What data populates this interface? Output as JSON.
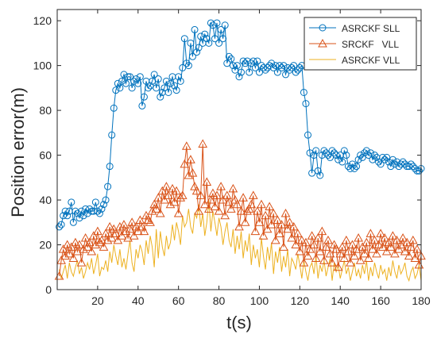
{
  "chart_data": {
    "type": "line",
    "title": "",
    "xlabel": "t(s)",
    "ylabel": "Position error(m)",
    "xlim": [
      0,
      180
    ],
    "ylim": [
      0,
      125
    ],
    "xticks": [
      20,
      40,
      60,
      80,
      100,
      120,
      140,
      160,
      180
    ],
    "yticks": [
      0,
      20,
      40,
      60,
      80,
      100,
      120
    ],
    "grid": false,
    "legend_position": "top-right",
    "series": [
      {
        "name": "ASRCKF SLL",
        "color": "#0072BD",
        "marker": "circle",
        "x": [
          1,
          2,
          3,
          4,
          5,
          6,
          7,
          8,
          9,
          10,
          11,
          12,
          13,
          14,
          15,
          16,
          17,
          18,
          19,
          20,
          21,
          22,
          23,
          24,
          25,
          26,
          27,
          28,
          29,
          30,
          31,
          32,
          33,
          34,
          35,
          36,
          37,
          38,
          39,
          40,
          41,
          42,
          43,
          44,
          45,
          46,
          47,
          48,
          49,
          50,
          51,
          52,
          53,
          54,
          55,
          56,
          57,
          58,
          59,
          60,
          61,
          62,
          63,
          64,
          65,
          66,
          67,
          68,
          69,
          70,
          71,
          72,
          73,
          74,
          75,
          76,
          77,
          78,
          79,
          80,
          81,
          82,
          83,
          84,
          85,
          86,
          87,
          88,
          89,
          90,
          91,
          92,
          93,
          94,
          95,
          96,
          97,
          98,
          99,
          100,
          101,
          102,
          103,
          104,
          105,
          106,
          107,
          108,
          109,
          110,
          111,
          112,
          113,
          114,
          115,
          116,
          117,
          118,
          119,
          120,
          121,
          122,
          123,
          124,
          125,
          126,
          127,
          128,
          129,
          130,
          131,
          132,
          133,
          134,
          135,
          136,
          137,
          138,
          139,
          140,
          141,
          142,
          143,
          144,
          145,
          146,
          147,
          148,
          149,
          150,
          151,
          152,
          153,
          154,
          155,
          156,
          157,
          158,
          159,
          160,
          161,
          162,
          163,
          164,
          165,
          166,
          167,
          168,
          169,
          170,
          171,
          172,
          173,
          174,
          175,
          176,
          177,
          178,
          179,
          180
        ],
        "y": [
          28,
          29,
          33,
          35,
          33,
          35,
          39,
          30,
          35,
          34,
          32,
          35,
          33,
          36,
          34,
          36,
          35,
          35,
          39,
          35,
          34,
          36,
          38,
          40,
          46,
          55,
          69,
          81,
          89,
          92,
          90,
          93,
          96,
          92,
          95,
          95,
          90,
          93,
          94,
          92,
          95,
          82,
          86,
          93,
          90,
          91,
          93,
          96,
          90,
          94,
          86,
          88,
          90,
          93,
          88,
          92,
          95,
          91,
          89,
          95,
          93,
          99,
          112,
          101,
          100,
          110,
          104,
          116,
          106,
          108,
          113,
          110,
          114,
          112,
          110,
          119,
          118,
          112,
          119,
          110,
          116,
          112,
          118,
          101,
          104,
          103,
          100,
          98,
          100,
          95,
          97,
          102,
          101,
          102,
          97,
          101,
          102,
          99,
          102,
          97,
          100,
          99,
          98,
          99,
          100,
          101,
          99,
          100,
          97,
          100,
          99,
          100,
          96,
          99,
          98,
          99,
          100,
          97,
          98,
          99,
          100,
          88,
          83,
          69,
          61,
          52,
          60,
          62,
          53,
          51,
          60,
          62,
          61,
          60,
          59,
          62,
          61,
          60,
          58,
          60,
          57,
          62,
          60,
          55,
          54,
          56,
          54,
          55,
          58,
          60,
          59,
          61,
          62,
          60,
          61,
          58,
          60,
          59,
          57,
          56,
          59,
          58,
          59,
          57,
          55,
          58,
          56,
          57,
          55,
          56,
          57,
          56,
          55,
          55,
          56,
          55,
          54,
          53,
          53,
          54
        ]
      },
      {
        "name": "SRCKF   VLL",
        "color": "#D95319",
        "marker": "triangle",
        "x": [
          1,
          2,
          3,
          4,
          5,
          6,
          7,
          8,
          9,
          10,
          11,
          12,
          13,
          14,
          15,
          16,
          17,
          18,
          19,
          20,
          21,
          22,
          23,
          24,
          25,
          26,
          27,
          28,
          29,
          30,
          31,
          32,
          33,
          34,
          35,
          36,
          37,
          38,
          39,
          40,
          41,
          42,
          43,
          44,
          45,
          46,
          47,
          48,
          49,
          50,
          51,
          52,
          53,
          54,
          55,
          56,
          57,
          58,
          59,
          60,
          61,
          62,
          63,
          64,
          65,
          66,
          67,
          68,
          69,
          70,
          71,
          72,
          73,
          74,
          75,
          76,
          77,
          78,
          79,
          80,
          81,
          82,
          83,
          84,
          85,
          86,
          87,
          88,
          89,
          90,
          91,
          92,
          93,
          94,
          95,
          96,
          97,
          98,
          99,
          100,
          101,
          102,
          103,
          104,
          105,
          106,
          107,
          108,
          109,
          110,
          111,
          112,
          113,
          114,
          115,
          116,
          117,
          118,
          119,
          120,
          121,
          122,
          123,
          124,
          125,
          126,
          127,
          128,
          129,
          130,
          131,
          132,
          133,
          134,
          135,
          136,
          137,
          138,
          139,
          140,
          141,
          142,
          143,
          144,
          145,
          146,
          147,
          148,
          149,
          150,
          151,
          152,
          153,
          154,
          155,
          156,
          157,
          158,
          159,
          160,
          161,
          162,
          163,
          164,
          165,
          166,
          167,
          168,
          169,
          170,
          171,
          172,
          173,
          174,
          175,
          176,
          177,
          178,
          179,
          180
        ],
        "y": [
          6,
          13,
          18,
          15,
          20,
          16,
          19,
          14,
          21,
          17,
          20,
          12,
          18,
          23,
          19,
          21,
          17,
          24,
          20,
          26,
          21,
          22,
          19,
          25,
          22,
          28,
          23,
          27,
          25,
          22,
          28,
          24,
          29,
          26,
          23,
          27,
          30,
          24,
          28,
          26,
          31,
          28,
          26,
          33,
          31,
          30,
          35,
          38,
          36,
          41,
          34,
          44,
          40,
          46,
          42,
          38,
          45,
          39,
          44,
          34,
          41,
          42,
          56,
          64,
          51,
          58,
          52,
          46,
          44,
          35,
          42,
          65,
          38,
          48,
          36,
          40,
          43,
          37,
          42,
          35,
          46,
          40,
          33,
          42,
          39,
          36,
          45,
          40,
          38,
          28,
          35,
          41,
          30,
          35,
          36,
          38,
          42,
          26,
          35,
          30,
          38,
          24,
          33,
          27,
          37,
          29,
          34,
          22,
          31,
          25,
          29,
          19,
          34,
          27,
          30,
          23,
          28,
          20,
          25,
          17,
          22,
          12,
          21,
          15,
          18,
          24,
          20,
          14,
          23,
          17,
          26,
          13,
          19,
          22,
          16,
          12,
          20,
          18,
          10,
          16,
          19,
          14,
          22,
          17,
          12,
          20,
          15,
          18,
          23,
          13,
          19,
          16,
          21,
          14,
          25,
          18,
          22,
          16,
          20,
          25,
          19,
          23,
          17,
          21,
          19,
          24,
          16,
          22,
          18,
          20,
          23,
          17,
          21,
          15,
          19,
          22,
          14,
          18,
          11,
          15
        ]
      },
      {
        "name": "ASRCKF VLL",
        "color": "#EDB120",
        "marker": "none",
        "x": [
          1,
          2,
          3,
          4,
          5,
          6,
          7,
          8,
          9,
          10,
          11,
          12,
          13,
          14,
          15,
          16,
          17,
          18,
          19,
          20,
          21,
          22,
          23,
          24,
          25,
          26,
          27,
          28,
          29,
          30,
          31,
          32,
          33,
          34,
          35,
          36,
          37,
          38,
          39,
          40,
          41,
          42,
          43,
          44,
          45,
          46,
          47,
          48,
          49,
          50,
          51,
          52,
          53,
          54,
          55,
          56,
          57,
          58,
          59,
          60,
          61,
          62,
          63,
          64,
          65,
          66,
          67,
          68,
          69,
          70,
          71,
          72,
          73,
          74,
          75,
          76,
          77,
          78,
          79,
          80,
          81,
          82,
          83,
          84,
          85,
          86,
          87,
          88,
          89,
          90,
          91,
          92,
          93,
          94,
          95,
          96,
          97,
          98,
          99,
          100,
          101,
          102,
          103,
          104,
          105,
          106,
          107,
          108,
          109,
          110,
          111,
          112,
          113,
          114,
          115,
          116,
          117,
          118,
          119,
          120,
          121,
          122,
          123,
          124,
          125,
          126,
          127,
          128,
          129,
          130,
          131,
          132,
          133,
          134,
          135,
          136,
          137,
          138,
          139,
          140,
          141,
          142,
          143,
          144,
          145,
          146,
          147,
          148,
          149,
          150,
          151,
          152,
          153,
          154,
          155,
          156,
          157,
          158,
          159,
          160,
          161,
          162,
          163,
          164,
          165,
          166,
          167,
          168,
          169,
          170,
          171,
          172,
          173,
          174,
          175,
          176,
          177,
          178,
          179,
          180
        ],
        "y": [
          9,
          5,
          8,
          11,
          5,
          12,
          8,
          6,
          10,
          13,
          7,
          10,
          5,
          8,
          12,
          9,
          14,
          7,
          11,
          16,
          6,
          10,
          9,
          13,
          8,
          17,
          12,
          20,
          15,
          11,
          18,
          10,
          14,
          9,
          16,
          22,
          12,
          8,
          18,
          14,
          20,
          17,
          11,
          22,
          16,
          24,
          19,
          10,
          27,
          14,
          26,
          19,
          15,
          24,
          18,
          21,
          29,
          22,
          30,
          26,
          20,
          33,
          28,
          30,
          36,
          28,
          25,
          34,
          32,
          38,
          28,
          34,
          24,
          30,
          40,
          26,
          35,
          30,
          24,
          32,
          28,
          20,
          26,
          30,
          22,
          19,
          27,
          16,
          24,
          18,
          26,
          14,
          22,
          17,
          25,
          11,
          20,
          14,
          18,
          10,
          23,
          15,
          9,
          19,
          13,
          21,
          7,
          17,
          12,
          19,
          8,
          15,
          10,
          18,
          6,
          14,
          12,
          9,
          16,
          11,
          5,
          13,
          8,
          4,
          10,
          12,
          7,
          15,
          5,
          11,
          8,
          13,
          6,
          10,
          14,
          4,
          12,
          8,
          11,
          5,
          9,
          13,
          7,
          10,
          4,
          8,
          12,
          6,
          9,
          5,
          11,
          7,
          13,
          4,
          10,
          6,
          12,
          8,
          5,
          11,
          7,
          9,
          4,
          10,
          6,
          13,
          8,
          5,
          11,
          7,
          9,
          12,
          6,
          4,
          8,
          10,
          5,
          7,
          11,
          4
        ]
      }
    ]
  }
}
